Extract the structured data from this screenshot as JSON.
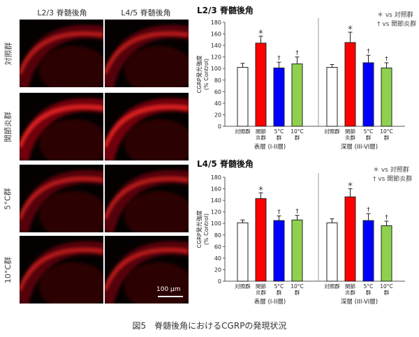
{
  "columns": [
    "L2/3 脊髄後角",
    "L4/5 脊髄後角"
  ],
  "rows": [
    "対照群",
    "関節炎群",
    "5°C群",
    "10°C群"
  ],
  "scale_bar": "100 μm",
  "caption": "図5　脊髄後角におけるCGRPの発現状況",
  "colors": {
    "control": "#ffffff",
    "arthritis": "#ff0000",
    "c5": "#0000ff",
    "c10": "#8fd14f"
  },
  "chart_data": [
    {
      "type": "bar",
      "title": "L2/3 脊髄後角",
      "legend": [
        "＊ vs 対照群",
        "† vs 関節炎群"
      ],
      "ylabel": "CGRP発光強度\n(% Control)",
      "ylim": [
        0,
        180
      ],
      "yticks": [
        0,
        20,
        40,
        60,
        80,
        100,
        120,
        140,
        160,
        180
      ],
      "groups": [
        {
          "name": "表層 (I-II層)",
          "categories": [
            "対照群",
            "関節\n炎群",
            "5°C\n群",
            "10°C\n群"
          ],
          "values": [
            102,
            144,
            101,
            108
          ],
          "errors": [
            7,
            12,
            10,
            12
          ],
          "marks": [
            "",
            "＊",
            "†",
            "†"
          ]
        },
        {
          "name": "深層 (III-VI層)",
          "categories": [
            "対照群",
            "関節\n炎群",
            "5°C\n群",
            "10°C\n群"
          ],
          "values": [
            102,
            145,
            110,
            101
          ],
          "errors": [
            5,
            18,
            13,
            9
          ],
          "marks": [
            "",
            "＊",
            "†",
            "†"
          ]
        }
      ]
    },
    {
      "type": "bar",
      "title": "L4/5 脊髄後角",
      "legend": [
        "＊ vs 対照群",
        "† vs 関節炎群"
      ],
      "ylabel": "CGRP発光強度\n(% Control)",
      "ylim": [
        0,
        180
      ],
      "yticks": [
        0,
        20,
        40,
        60,
        80,
        100,
        120,
        140,
        160,
        180
      ],
      "groups": [
        {
          "name": "表層 (I-II層)",
          "categories": [
            "対照群",
            "関節\n炎群",
            "5°C\n群",
            "10°C\n群"
          ],
          "values": [
            101,
            143,
            105,
            106
          ],
          "errors": [
            5,
            10,
            8,
            8
          ],
          "marks": [
            "",
            "＊",
            "†",
            "†"
          ]
        },
        {
          "name": "深層 (III-VI層)",
          "categories": [
            "対照群",
            "関節\n炎群",
            "5°C\n群",
            "10°C\n群"
          ],
          "values": [
            101,
            146,
            105,
            96
          ],
          "errors": [
            7,
            14,
            12,
            8
          ],
          "marks": [
            "",
            "＊",
            "†",
            "†"
          ]
        }
      ]
    }
  ]
}
